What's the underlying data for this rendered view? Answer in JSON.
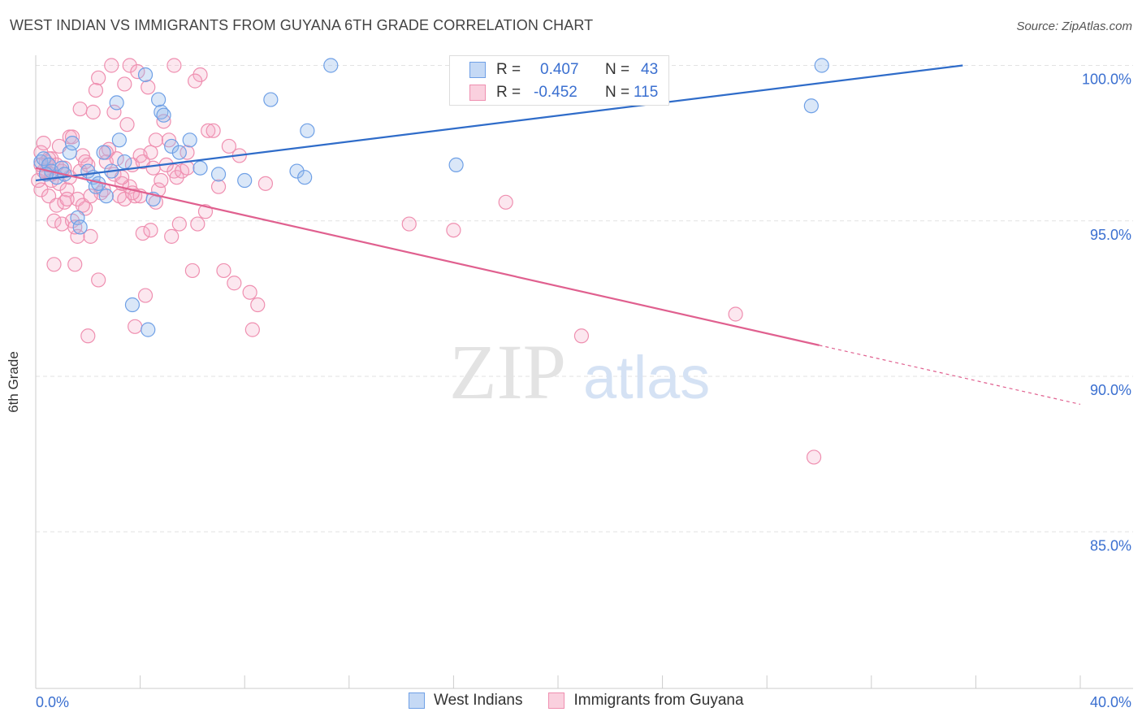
{
  "header": {
    "title": "WEST INDIAN VS IMMIGRANTS FROM GUYANA 6TH GRADE CORRELATION CHART",
    "source": "Source: ZipAtlas.com"
  },
  "watermark": {
    "part1": "ZIP",
    "part2": "atlas"
  },
  "legend": {
    "r_label": "R =",
    "n_label": "N =",
    "series": [
      {
        "name": "West Indians",
        "r": "0.407",
        "n": "43",
        "color": "#6fa0e6"
      },
      {
        "name": "Immigrants from Guyana",
        "r": "-0.452",
        "n": "115",
        "color": "#ef8fb0"
      }
    ]
  },
  "chart_data": {
    "type": "scatter",
    "title": "WEST INDIAN VS IMMIGRANTS FROM GUYANA 6TH GRADE CORRELATION CHART",
    "xlabel": "",
    "ylabel": "6th Grade",
    "xlim": [
      0,
      40
    ],
    "ylim": [
      80,
      100.5
    ],
    "x_tick_labels": [
      "0.0%",
      "40.0%"
    ],
    "y_ticks": [
      85,
      90,
      95,
      100
    ],
    "y_tick_labels": [
      "85.0%",
      "90.0%",
      "95.0%",
      "100.0%"
    ],
    "grid": "horizontal dashed",
    "series": [
      {
        "name": "West Indians",
        "color": "#6fa0e6",
        "trend": {
          "x": [
            0,
            35.5
          ],
          "y": [
            96.3,
            100.0
          ],
          "style": "solid"
        },
        "points": [
          [
            0.2,
            96.9
          ],
          [
            0.3,
            97.0
          ],
          [
            0.5,
            96.8
          ],
          [
            0.6,
            96.6
          ],
          [
            0.8,
            96.4
          ],
          [
            1.0,
            96.7
          ],
          [
            1.3,
            97.2
          ],
          [
            1.4,
            97.5
          ],
          [
            1.6,
            95.1
          ],
          [
            1.7,
            94.8
          ],
          [
            2.0,
            96.6
          ],
          [
            2.2,
            96.4
          ],
          [
            2.3,
            96.1
          ],
          [
            2.4,
            96.2
          ],
          [
            2.6,
            97.2
          ],
          [
            2.7,
            95.8
          ],
          [
            3.1,
            98.8
          ],
          [
            3.2,
            97.6
          ],
          [
            3.4,
            96.9
          ],
          [
            3.7,
            92.3
          ],
          [
            4.2,
            99.7
          ],
          [
            4.3,
            91.5
          ],
          [
            4.5,
            95.7
          ],
          [
            4.7,
            98.9
          ],
          [
            4.8,
            98.5
          ],
          [
            4.9,
            98.4
          ],
          [
            5.2,
            97.4
          ],
          [
            5.5,
            97.2
          ],
          [
            5.9,
            97.6
          ],
          [
            6.3,
            96.7
          ],
          [
            7.0,
            96.5
          ],
          [
            8.0,
            96.3
          ],
          [
            9.0,
            98.9
          ],
          [
            10.0,
            96.6
          ],
          [
            10.3,
            96.4
          ],
          [
            10.4,
            97.9
          ],
          [
            11.3,
            100.0
          ],
          [
            16.1,
            96.8
          ],
          [
            29.7,
            98.7
          ],
          [
            30.1,
            100.0
          ],
          [
            0.4,
            96.5
          ],
          [
            1.1,
            96.5
          ],
          [
            2.9,
            96.6
          ]
        ]
      },
      {
        "name": "Immigrants from Guyana",
        "color": "#ef8fb0",
        "trend": {
          "x": [
            0,
            30.0
          ],
          "y": [
            96.7,
            91.0
          ],
          "style": "solid",
          "dashed_to": [
            40,
            89.1
          ]
        },
        "points": [
          [
            0.1,
            96.3
          ],
          [
            0.2,
            97.2
          ],
          [
            0.2,
            96.0
          ],
          [
            0.3,
            97.5
          ],
          [
            0.4,
            96.6
          ],
          [
            0.5,
            95.8
          ],
          [
            0.6,
            97.0
          ],
          [
            0.6,
            96.3
          ],
          [
            0.7,
            95.0
          ],
          [
            0.7,
            93.6
          ],
          [
            0.8,
            95.5
          ],
          [
            0.9,
            96.2
          ],
          [
            1.0,
            94.9
          ],
          [
            1.1,
            95.6
          ],
          [
            1.1,
            96.7
          ],
          [
            1.2,
            96.0
          ],
          [
            1.3,
            97.7
          ],
          [
            1.3,
            96.4
          ],
          [
            1.4,
            95.0
          ],
          [
            1.5,
            93.6
          ],
          [
            1.6,
            95.7
          ],
          [
            1.6,
            94.5
          ],
          [
            1.7,
            96.6
          ],
          [
            1.7,
            98.6
          ],
          [
            1.8,
            97.1
          ],
          [
            1.9,
            95.4
          ],
          [
            2.0,
            96.8
          ],
          [
            2.1,
            94.5
          ],
          [
            2.2,
            98.5
          ],
          [
            2.4,
            99.6
          ],
          [
            2.4,
            93.1
          ],
          [
            2.5,
            95.9
          ],
          [
            2.7,
            96.9
          ],
          [
            2.8,
            97.3
          ],
          [
            3.0,
            96.5
          ],
          [
            3.0,
            98.5
          ],
          [
            3.2,
            95.8
          ],
          [
            3.3,
            96.2
          ],
          [
            3.4,
            99.4
          ],
          [
            3.4,
            95.7
          ],
          [
            3.5,
            98.1
          ],
          [
            3.6,
            96.1
          ],
          [
            3.7,
            96.8
          ],
          [
            3.8,
            91.6
          ],
          [
            3.8,
            95.8
          ],
          [
            4.0,
            97.1
          ],
          [
            4.1,
            96.9
          ],
          [
            4.1,
            94.6
          ],
          [
            4.2,
            92.6
          ],
          [
            4.3,
            99.3
          ],
          [
            4.4,
            97.2
          ],
          [
            4.5,
            96.7
          ],
          [
            4.6,
            97.6
          ],
          [
            4.7,
            96.0
          ],
          [
            4.8,
            96.3
          ],
          [
            4.9,
            98.2
          ],
          [
            5.1,
            97.6
          ],
          [
            5.2,
            94.5
          ],
          [
            5.3,
            96.6
          ],
          [
            5.4,
            96.4
          ],
          [
            5.5,
            94.9
          ],
          [
            5.8,
            97.2
          ],
          [
            6.0,
            93.4
          ],
          [
            6.2,
            94.9
          ],
          [
            6.3,
            99.7
          ],
          [
            6.6,
            97.9
          ],
          [
            7.0,
            96.1
          ],
          [
            7.2,
            93.4
          ],
          [
            7.4,
            97.4
          ],
          [
            7.6,
            93.0
          ],
          [
            7.8,
            97.1
          ],
          [
            8.2,
            92.7
          ],
          [
            8.3,
            91.5
          ],
          [
            8.5,
            92.3
          ],
          [
            8.8,
            96.2
          ],
          [
            1.5,
            94.8
          ],
          [
            2.3,
            99.2
          ],
          [
            2.9,
            100.0
          ],
          [
            3.6,
            100.0
          ],
          [
            3.9,
            99.8
          ],
          [
            5.3,
            100.0
          ],
          [
            6.1,
            99.5
          ],
          [
            0.4,
            96.9
          ],
          [
            0.9,
            97.4
          ],
          [
            1.0,
            96.6
          ],
          [
            1.8,
            95.5
          ],
          [
            2.6,
            96.0
          ],
          [
            3.1,
            97.0
          ],
          [
            4.0,
            95.8
          ],
          [
            4.6,
            95.6
          ],
          [
            5.0,
            96.8
          ],
          [
            5.6,
            96.6
          ],
          [
            6.8,
            97.9
          ],
          [
            0.3,
            96.6
          ],
          [
            0.5,
            97.0
          ],
          [
            0.8,
            96.8
          ],
          [
            1.2,
            95.7
          ],
          [
            2.0,
            91.3
          ],
          [
            2.7,
            97.2
          ],
          [
            3.3,
            96.4
          ],
          [
            4.4,
            94.7
          ],
          [
            5.8,
            96.7
          ],
          [
            1.4,
            97.7
          ],
          [
            0.6,
            96.5
          ],
          [
            2.1,
            95.8
          ],
          [
            3.7,
            95.9
          ],
          [
            0.2,
            96.8
          ],
          [
            1.9,
            96.9
          ],
          [
            14.3,
            94.9
          ],
          [
            16.0,
            94.7
          ],
          [
            18.0,
            95.6
          ],
          [
            20.9,
            91.3
          ],
          [
            26.8,
            92.0
          ],
          [
            29.8,
            87.4
          ],
          [
            6.5,
            95.3
          ]
        ]
      }
    ]
  }
}
